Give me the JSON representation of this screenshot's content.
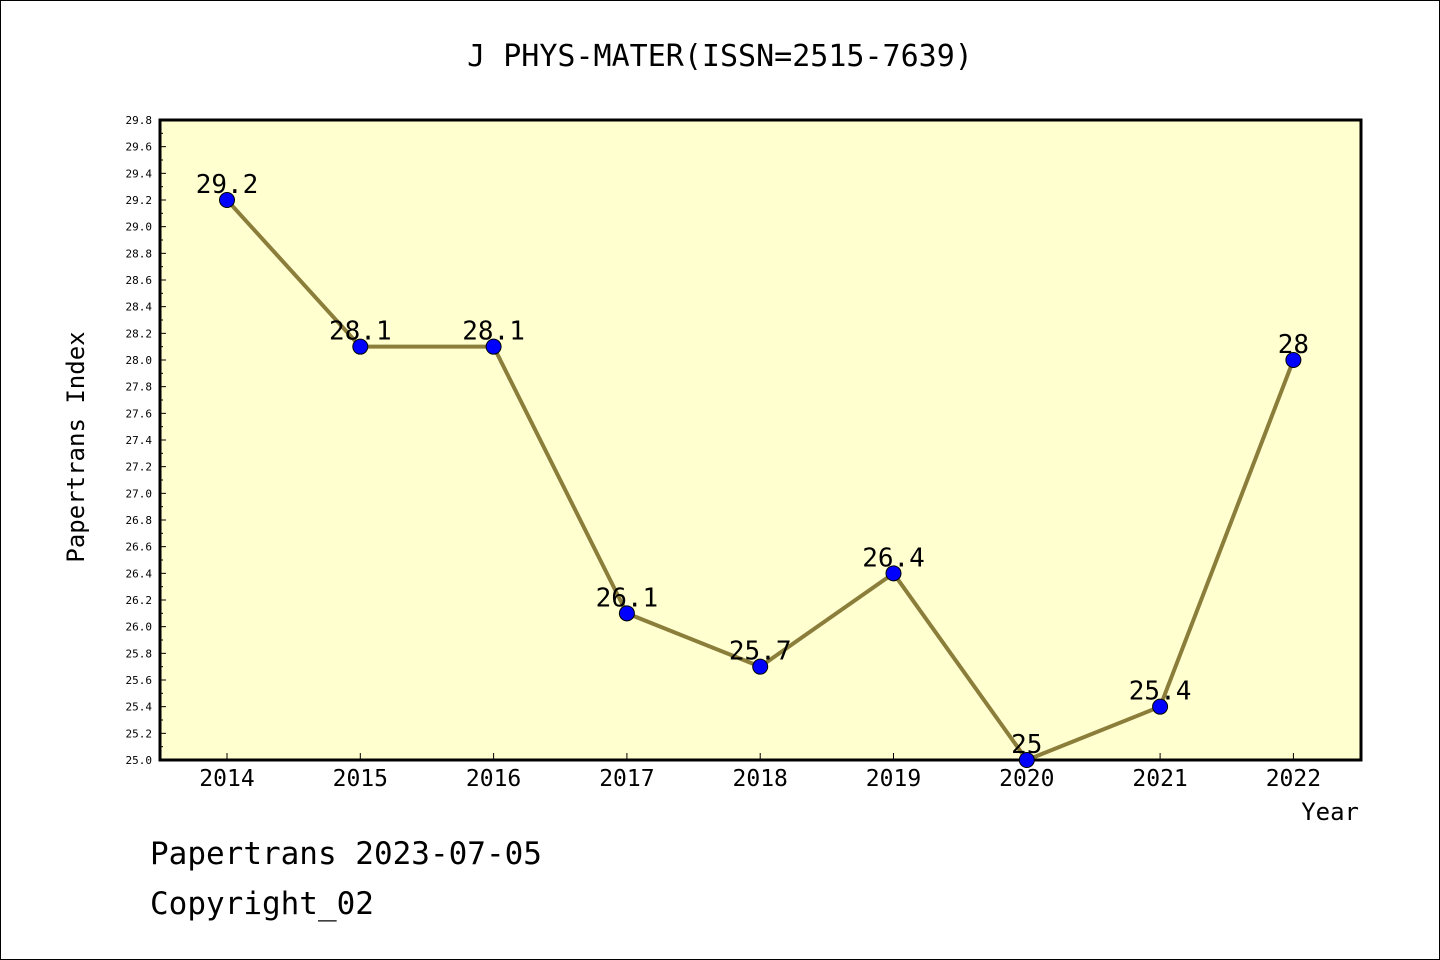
{
  "chart_data": {
    "type": "line",
    "title": "J PHYS-MATER(ISSN=2515-7639)",
    "xlabel": "Year",
    "ylabel": "Papertrans Index",
    "categories": [
      "2014",
      "2015",
      "2016",
      "2017",
      "2018",
      "2019",
      "2020",
      "2021",
      "2022"
    ],
    "series": [
      {
        "values": [
          29.2,
          28.1,
          28.1,
          26.1,
          25.7,
          26.4,
          25.0,
          25.4,
          28.0
        ],
        "labels": [
          "29.2",
          "28.1",
          "28.1",
          "26.1",
          "25.7",
          "26.4",
          "25",
          "25.4",
          "28"
        ]
      }
    ],
    "ylim": [
      25.0,
      29.8
    ],
    "yticks": [
      "25.0",
      "25.2",
      "25.4",
      "25.6",
      "25.8",
      "26.0",
      "26.2",
      "26.4",
      "26.6",
      "26.8",
      "27.0",
      "27.2",
      "27.4",
      "27.6",
      "27.8",
      "28.0",
      "28.2",
      "28.4",
      "28.6",
      "28.8",
      "29.0",
      "29.2",
      "29.4",
      "29.6",
      "29.8"
    ],
    "grid": false,
    "colors": {
      "plot_background": "#FFFFD0",
      "line": "#8B7D3A",
      "marker": "#0000FF"
    }
  },
  "footer": {
    "line1": "Papertrans 2023-07-05",
    "line2": "Copyright_02"
  }
}
